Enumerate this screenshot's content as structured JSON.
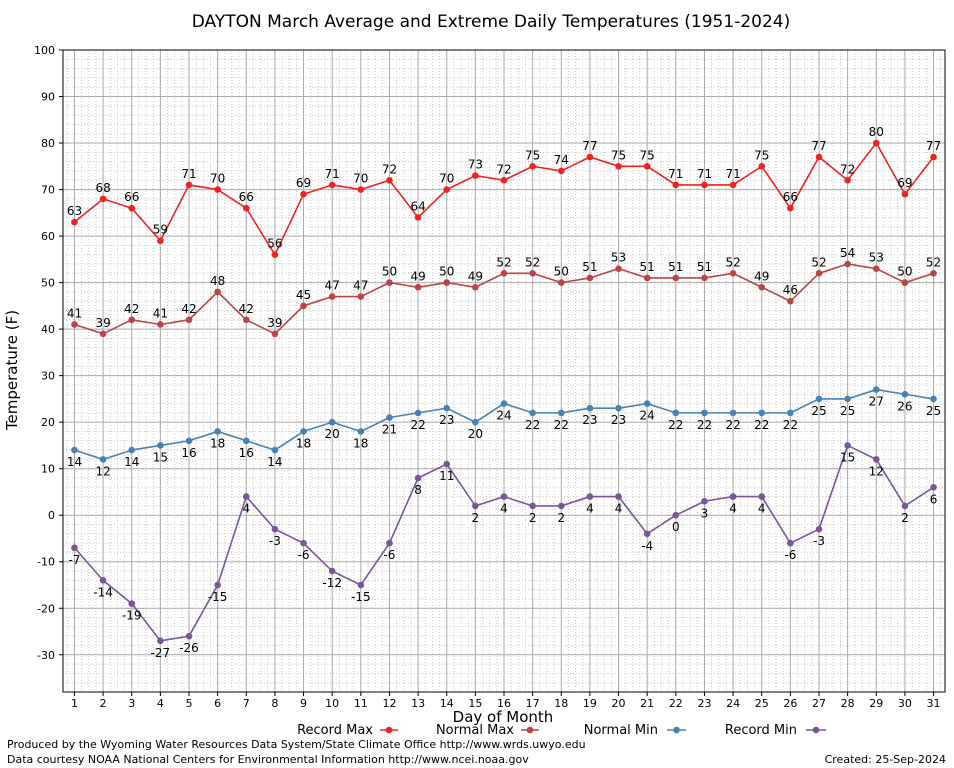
{
  "chart_data": {
    "type": "line",
    "title": "DAYTON March Average and Extreme Daily Temperatures (1951-2024)",
    "xlabel": "Day of Month",
    "ylabel": "Temperature (F)",
    "x": [
      1,
      2,
      3,
      4,
      5,
      6,
      7,
      8,
      9,
      10,
      11,
      12,
      13,
      14,
      15,
      16,
      17,
      18,
      19,
      20,
      21,
      22,
      23,
      24,
      25,
      26,
      27,
      28,
      29,
      30,
      31
    ],
    "xlim": [
      0.6,
      31.4
    ],
    "ylim": [
      -38,
      100
    ],
    "yticks": [
      -30,
      -20,
      -10,
      0,
      10,
      20,
      30,
      40,
      50,
      60,
      70,
      80,
      90,
      100
    ],
    "grid": true,
    "legend_position": "bottom",
    "series": [
      {
        "name": "Record Max",
        "color": "#ee2222",
        "label_position": "above",
        "values": [
          63,
          68,
          66,
          59,
          71,
          70,
          66,
          56,
          69,
          71,
          70,
          72,
          64,
          70,
          73,
          72,
          75,
          74,
          77,
          75,
          75,
          71,
          71,
          71,
          75,
          66,
          77,
          72,
          80,
          69,
          77
        ]
      },
      {
        "name": "Normal Max",
        "color": "#bb4444",
        "label_position": "above",
        "values": [
          41,
          39,
          42,
          41,
          42,
          48,
          42,
          39,
          45,
          47,
          47,
          50,
          49,
          50,
          49,
          52,
          52,
          50,
          51,
          53,
          51,
          51,
          51,
          52,
          49,
          46,
          52,
          54,
          53,
          50,
          52
        ]
      },
      {
        "name": "Normal Min",
        "color": "#4682b4",
        "label_position": "below",
        "values": [
          14,
          12,
          14,
          15,
          16,
          18,
          16,
          14,
          18,
          20,
          18,
          21,
          22,
          23,
          20,
          24,
          22,
          22,
          23,
          23,
          24,
          22,
          22,
          22,
          22,
          22,
          25,
          25,
          27,
          26,
          25
        ]
      },
      {
        "name": "Record Min",
        "color": "#7b559c",
        "label_position": "below",
        "values": [
          -7,
          -14,
          -19,
          -27,
          -26,
          -15,
          4,
          -3,
          -6,
          -12,
          -15,
          -6,
          8,
          11,
          2,
          4,
          2,
          2,
          4,
          4,
          -4,
          0,
          3,
          4,
          4,
          -6,
          -3,
          15,
          12,
          2,
          6
        ]
      }
    ]
  },
  "footer": {
    "produced_by": "Produced by the Wyoming Water Resources Data System/State Climate Office http://www.wrds.uwyo.edu",
    "courtesy": "Data courtesy NOAA National Centers for Environmental Information http://www.ncei.noaa.gov",
    "created": "Created:  25-Sep-2024"
  }
}
